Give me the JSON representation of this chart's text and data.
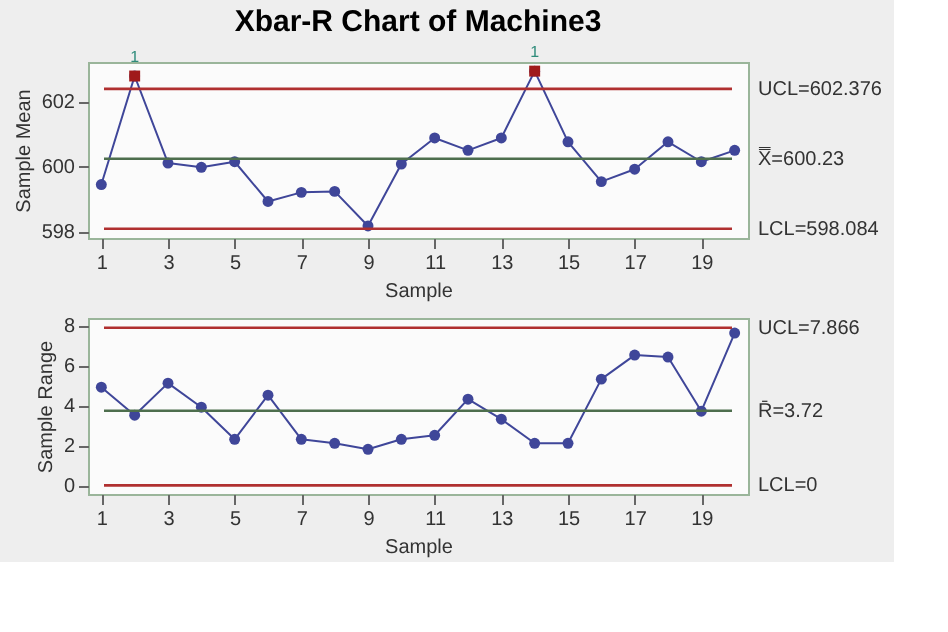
{
  "chart_data": [
    {
      "type": "line",
      "title": "Xbar-R Chart of Machine3",
      "xlabel": "Sample",
      "ylabel": "Sample Mean",
      "x": [
        1,
        2,
        3,
        4,
        5,
        6,
        7,
        8,
        9,
        10,
        11,
        12,
        13,
        14,
        15,
        16,
        17,
        18,
        19,
        20
      ],
      "xlim": [
        0.6,
        20.4
      ],
      "xticks": [
        1,
        3,
        5,
        7,
        9,
        11,
        13,
        15,
        17,
        19
      ],
      "ylim": [
        597.8,
        603.2
      ],
      "yticks": [
        598,
        600,
        602
      ],
      "grid": false,
      "line_style": "solid",
      "series": [
        {
          "type": "line",
          "marker": "circle",
          "color": "#3f4699",
          "values": [
            599.44,
            602.77,
            600.1,
            599.97,
            600.14,
            598.92,
            599.2,
            599.23,
            598.17,
            600.07,
            600.87,
            600.49,
            600.87,
            602.92,
            600.75,
            599.53,
            599.91,
            600.75,
            600.14,
            600.49
          ]
        },
        {
          "type": "scatter",
          "marker": "square",
          "color": "#a01a1a",
          "x": [
            2,
            14
          ],
          "values": [
            602.77,
            602.92
          ]
        }
      ],
      "ref_lines": [
        {
          "axis": "y",
          "value": 602.376,
          "label": "UCL=602.376",
          "color": "#b03030"
        },
        {
          "axis": "y",
          "value": 600.23,
          "label": "X̿=600.23",
          "color": "#4d6e4d"
        },
        {
          "axis": "y",
          "value": 598.084,
          "label": "LCL=598.084",
          "color": "#b03030"
        }
      ],
      "annotations": [
        {
          "text": "1",
          "x": 2,
          "y": 602.77
        },
        {
          "text": "1",
          "x": 14,
          "y": 602.92
        }
      ]
    },
    {
      "type": "line",
      "xlabel": "Sample",
      "ylabel": "Sample Range",
      "x": [
        1,
        2,
        3,
        4,
        5,
        6,
        7,
        8,
        9,
        10,
        11,
        12,
        13,
        14,
        15,
        16,
        17,
        18,
        19,
        20
      ],
      "xlim": [
        0.6,
        20.4
      ],
      "xticks": [
        1,
        3,
        5,
        7,
        9,
        11,
        13,
        15,
        17,
        19
      ],
      "ylim": [
        -0.43,
        8.35
      ],
      "yticks": [
        0,
        2,
        4,
        6,
        8
      ],
      "grid": false,
      "line_style": "solid",
      "series": [
        {
          "type": "line",
          "marker": "circle",
          "color": "#3f4699",
          "values": [
            4.9,
            3.5,
            5.1,
            3.9,
            2.3,
            4.5,
            2.3,
            2.1,
            1.8,
            2.3,
            2.5,
            4.3,
            3.3,
            2.1,
            2.1,
            5.3,
            6.5,
            6.4,
            3.7,
            7.6
          ]
        }
      ],
      "ref_lines": [
        {
          "axis": "y",
          "value": 7.866,
          "label": "UCL=7.866",
          "color": "#b03030"
        },
        {
          "axis": "y",
          "value": 3.72,
          "label": "R̄=3.72",
          "color": "#4d6e4d"
        },
        {
          "axis": "y",
          "value": 0,
          "label": "LCL=0",
          "color": "#b03030"
        }
      ]
    }
  ]
}
